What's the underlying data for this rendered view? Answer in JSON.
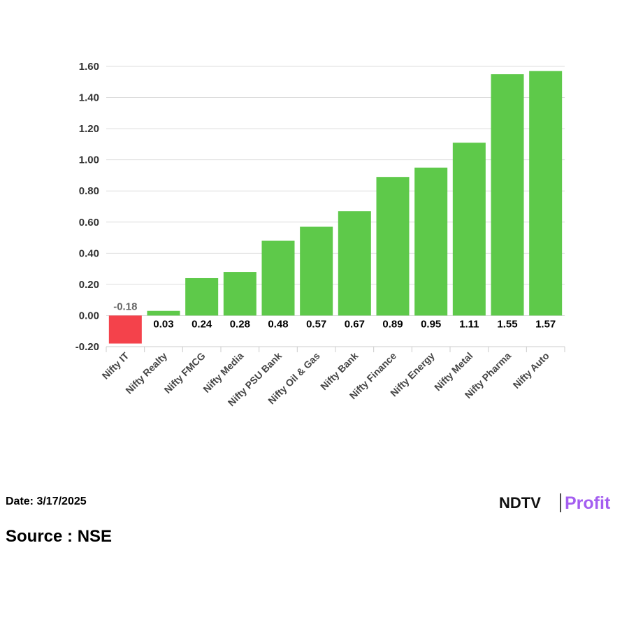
{
  "chart_data": {
    "type": "bar",
    "categories": [
      "Nifty IT",
      "Nifty Realty",
      "Nifty FMCG",
      "Nifty Media",
      "Nifty PSU Bank",
      "Nifty Oil & Gas",
      "Nifty Bank",
      "Nifty Finance",
      "Nifty Energy",
      "Nifty Metal",
      "Nifty Pharma",
      "Nifty Auto"
    ],
    "values": [
      -0.18,
      0.03,
      0.24,
      0.28,
      0.48,
      0.57,
      0.67,
      0.89,
      0.95,
      1.11,
      1.55,
      1.57
    ],
    "positive_color": "#5ec94a",
    "negative_color": "#f4424b",
    "ylim": [
      -0.2,
      1.6
    ],
    "yticks": [
      {
        "value": -0.2,
        "label": "-0.20"
      },
      {
        "value": 0,
        "label": "0.00"
      },
      {
        "value": 0.2,
        "label": "0.20"
      },
      {
        "value": 0.4,
        "label": "0.40"
      },
      {
        "value": 0.6,
        "label": "0.60"
      },
      {
        "value": 0.8,
        "label": "0.80"
      },
      {
        "value": 1,
        "label": "1.00"
      },
      {
        "value": 1.2,
        "label": "1.20"
      },
      {
        "value": 1.4,
        "label": "1.40"
      },
      {
        "value": 1.6,
        "label": "1.60"
      }
    ],
    "grid": true
  },
  "footer": {
    "date": "Date: 3/17/2025",
    "source": "Source : NSE",
    "logo_left": "NDTV",
    "logo_right": "Profit"
  }
}
